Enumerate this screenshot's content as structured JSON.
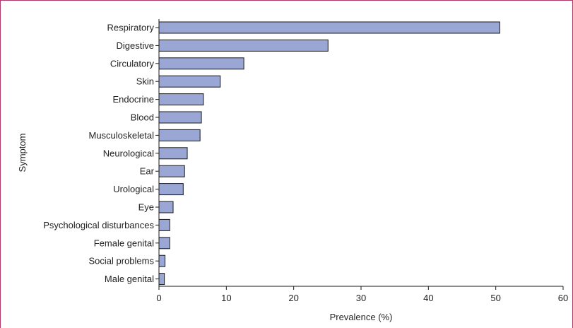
{
  "chart_data": {
    "type": "bar",
    "orientation": "horizontal",
    "categories": [
      "Respiratory",
      "Digestive",
      "Circulatory",
      "Skin",
      "Endocrine",
      "Blood",
      "Musculoskeletal",
      "Neurological",
      "Ear",
      "Urological",
      "Eye",
      "Psychological disturbances",
      "Female genital",
      "Social problems",
      "Male genital"
    ],
    "values": [
      50.6,
      25.1,
      12.6,
      9.1,
      6.6,
      6.3,
      6.1,
      4.2,
      3.8,
      3.6,
      2.1,
      1.6,
      1.6,
      0.9,
      0.8
    ],
    "xlabel": "Prevalence (%)",
    "ylabel": "Symptom",
    "xlim": [
      0,
      60
    ],
    "xticks": [
      0,
      10,
      20,
      30,
      40,
      50,
      60
    ],
    "grid": false,
    "colors": {
      "bar_fill": "#9aa7d4",
      "bar_stroke": "#1a1a1a",
      "frame": "#b03a6a"
    }
  }
}
